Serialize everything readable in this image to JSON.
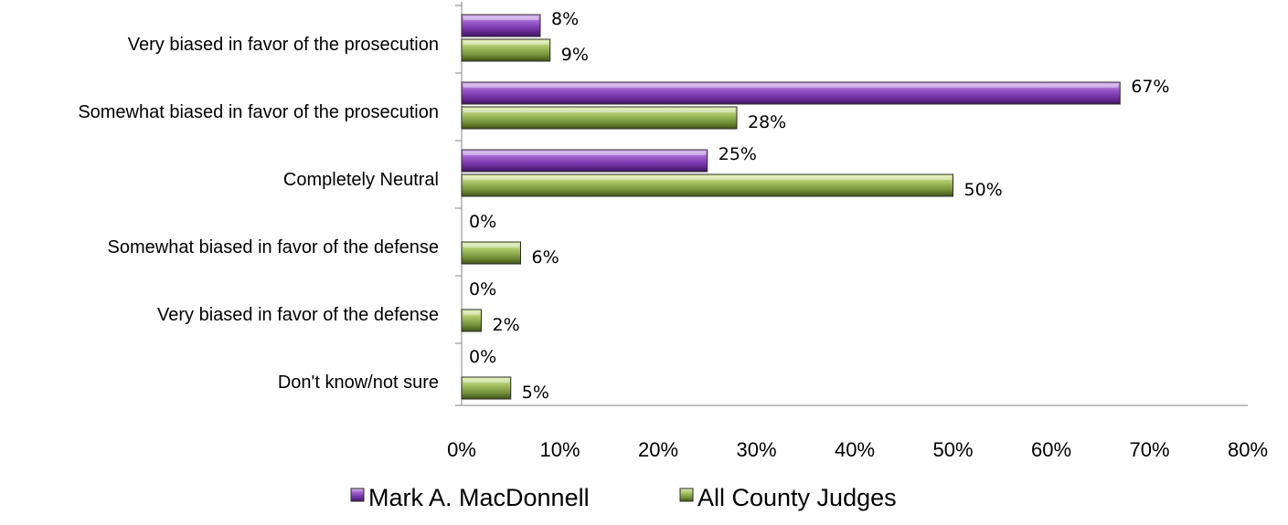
{
  "chart_data": {
    "type": "bar",
    "orientation": "horizontal",
    "categories": [
      "Very biased in favor of the prosecution",
      "Somewhat biased in favor of the prosecution",
      "Completely Neutral",
      "Somewhat biased in favor of the defense",
      "Very biased in favor of the defense",
      "Don't know/not sure"
    ],
    "series": [
      {
        "name": "Mark A. MacDonnell",
        "color": "#7030A0",
        "values": [
          8,
          67,
          25,
          0,
          0,
          0
        ],
        "labels": [
          "8%",
          "67%",
          "25%",
          "0%",
          "0%",
          "0%"
        ]
      },
      {
        "name": "All County Judges",
        "color": "#77933C",
        "values": [
          9,
          28,
          50,
          6,
          2,
          5
        ],
        "labels": [
          "9%",
          "28%",
          "50%",
          "6%",
          "2%",
          "5%"
        ]
      }
    ],
    "xlim": [
      0,
      80
    ],
    "xticks": [
      0,
      10,
      20,
      30,
      40,
      50,
      60,
      70,
      80
    ],
    "xtick_labels": [
      "0%",
      "10%",
      "20%",
      "30%",
      "40%",
      "50%",
      "60%",
      "70%",
      "80%"
    ],
    "grid": false,
    "legend_position": "bottom"
  }
}
